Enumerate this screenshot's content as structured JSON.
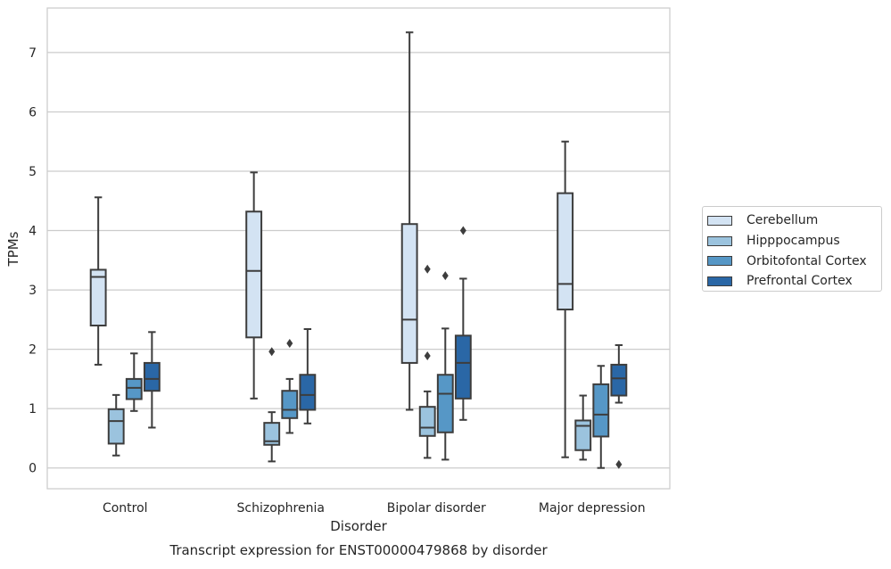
{
  "chart_data": {
    "type": "box",
    "title": "Transcript expression for ENST00000479868 by disorder",
    "xlabel": "Disorder",
    "ylabel": "TPMs",
    "ylim": [
      -0.35,
      7.75
    ],
    "yticks": [
      0,
      1,
      2,
      3,
      4,
      5,
      6,
      7
    ],
    "grid": "horizontal",
    "legend_position": "right",
    "categories": [
      "Control",
      "Schizophrenia",
      "Bipolar disorder",
      "Major depression"
    ],
    "series": [
      {
        "name": "Cerebellum",
        "color": "#d3e3f3",
        "boxes": [
          {
            "whisker_low": 1.74,
            "q1": 2.4,
            "median": 3.22,
            "q3": 3.34,
            "whisker_high": 4.56,
            "outliers": []
          },
          {
            "whisker_low": 1.17,
            "q1": 2.2,
            "median": 3.32,
            "q3": 4.32,
            "whisker_high": 4.98,
            "outliers": []
          },
          {
            "whisker_low": 0.98,
            "q1": 1.77,
            "median": 2.5,
            "q3": 4.11,
            "whisker_high": 7.34,
            "outliers": []
          },
          {
            "whisker_low": 0.18,
            "q1": 2.67,
            "median": 3.1,
            "q3": 4.63,
            "whisker_high": 5.5,
            "outliers": []
          }
        ]
      },
      {
        "name": "Hipppocampus",
        "color": "#9bc3de",
        "boxes": [
          {
            "whisker_low": 0.21,
            "q1": 0.41,
            "median": 0.79,
            "q3": 0.99,
            "whisker_high": 1.23,
            "outliers": []
          },
          {
            "whisker_low": 0.11,
            "q1": 0.39,
            "median": 0.45,
            "q3": 0.76,
            "whisker_high": 0.94,
            "outliers": [
              1.96
            ]
          },
          {
            "whisker_low": 0.17,
            "q1": 0.54,
            "median": 0.68,
            "q3": 1.03,
            "whisker_high": 1.29,
            "outliers": [
              1.89,
              3.35
            ]
          },
          {
            "whisker_low": 0.14,
            "q1": 0.3,
            "median": 0.71,
            "q3": 0.8,
            "whisker_high": 1.22,
            "outliers": []
          }
        ]
      },
      {
        "name": "Orbitofontal Cortex",
        "color": "#5697c6",
        "boxes": [
          {
            "whisker_low": 0.96,
            "q1": 1.16,
            "median": 1.35,
            "q3": 1.5,
            "whisker_high": 1.93,
            "outliers": []
          },
          {
            "whisker_low": 0.59,
            "q1": 0.84,
            "median": 0.98,
            "q3": 1.3,
            "whisker_high": 1.5,
            "outliers": [
              2.1
            ]
          },
          {
            "whisker_low": 0.14,
            "q1": 0.6,
            "median": 1.25,
            "q3": 1.57,
            "whisker_high": 2.35,
            "outliers": [
              3.24
            ]
          },
          {
            "whisker_low": 0.0,
            "q1": 0.53,
            "median": 0.9,
            "q3": 1.41,
            "whisker_high": 1.72,
            "outliers": []
          }
        ]
      },
      {
        "name": "Prefrontal Cortex",
        "color": "#2a67a6",
        "boxes": [
          {
            "whisker_low": 0.68,
            "q1": 1.3,
            "median": 1.5,
            "q3": 1.77,
            "whisker_high": 2.29,
            "outliers": []
          },
          {
            "whisker_low": 0.75,
            "q1": 0.98,
            "median": 1.23,
            "q3": 1.57,
            "whisker_high": 2.34,
            "outliers": []
          },
          {
            "whisker_low": 0.81,
            "q1": 1.17,
            "median": 1.77,
            "q3": 2.23,
            "whisker_high": 3.19,
            "outliers": [
              4.0
            ]
          },
          {
            "whisker_low": 1.1,
            "q1": 1.22,
            "median": 1.51,
            "q3": 1.74,
            "whisker_high": 2.07,
            "outliers": [
              0.06
            ]
          }
        ]
      }
    ]
  }
}
